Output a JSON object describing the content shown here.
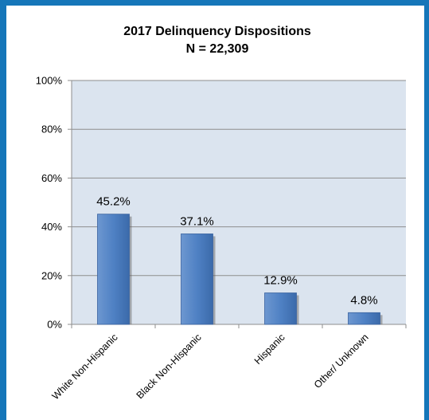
{
  "chart_data": {
    "type": "bar",
    "title": "2017 Delinquency Dispositions",
    "subtitle": "N = 22,309",
    "categories": [
      "White Non-Hispanic",
      "Black Non-Hispanic",
      "Hispanic",
      "Other/ Unknown"
    ],
    "values": [
      45.2,
      37.1,
      12.9,
      4.8
    ],
    "data_labels": [
      "45.2%",
      "37.1%",
      "12.9%",
      "4.8%"
    ],
    "y_ticks": [
      "0%",
      "20%",
      "40%",
      "60%",
      "80%",
      "100%"
    ],
    "ylim": [
      0,
      100
    ],
    "grid": true,
    "legend": "none",
    "colors": {
      "bar": "#4f81c4",
      "plot_background": "#dbe4ef",
      "gridline": "#8e8e8e",
      "frame": "#1576b9"
    }
  }
}
